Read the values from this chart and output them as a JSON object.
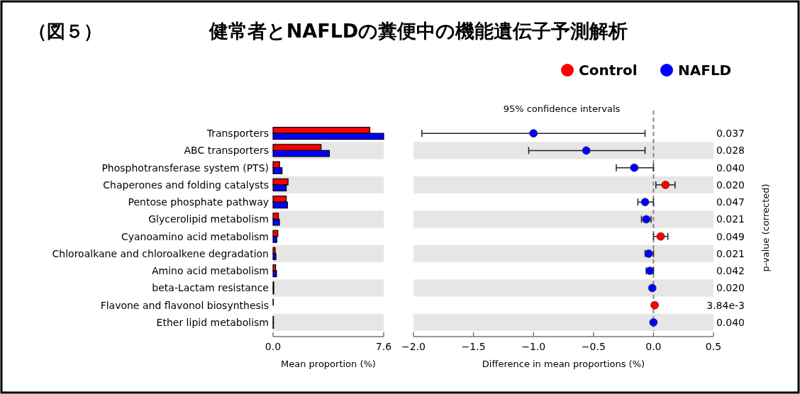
{
  "chart_data": [
    {
      "type": "bar",
      "orientation": "horizontal",
      "title": "健常者とNAFLDの糞便中の機能遺伝子予測解析",
      "annotations": [
        "（図５）"
      ],
      "xlabel": "Mean proportion (%)",
      "legend": "top right",
      "categories": [
        "Transporters",
        "ABC transporters",
        "Phosphotransferase system (PTS)",
        "Chaperones and folding catalysts",
        "Pentose phosphate pathway",
        "Glycerolipid metabolism",
        "Cyanoamino acid metabolism",
        "Chloroalkane and chloroalkene degradation",
        "Amino acid metabolism",
        "beta-Lactam resistance",
        "Flavone and flavonol biosynthesis",
        "Ether lipid metabolism"
      ],
      "series": [
        {
          "name": "Control",
          "color": "#ff0000",
          "values": [
            6.65,
            3.3,
            0.45,
            1.03,
            0.91,
            0.37,
            0.33,
            0.15,
            0.18,
            0.05,
            0.02,
            0.03
          ]
        },
        {
          "name": "NAFLD",
          "color": "#0000ff",
          "values": [
            7.6,
            3.87,
            0.62,
            0.91,
            0.99,
            0.44,
            0.26,
            0.2,
            0.24,
            0.05,
            null,
            0.03
          ]
        }
      ],
      "xlim": [
        0,
        7.6
      ],
      "xticks": [
        {
          "value": 0,
          "label": "0.0"
        },
        7.6
      ],
      "grid": false
    },
    {
      "type": "scatter",
      "orientation": "horizontal",
      "title": "95% confidence intervals",
      "xlabel": "Difference in mean proportions (%)",
      "y2label": "p-value (corrected)",
      "marker": "circle",
      "y2_categories": [
        "0.037",
        "0.028",
        "0.040",
        "0.020",
        "0.047",
        "0.021",
        "0.049",
        "0.021",
        "0.042",
        "0.020",
        "3.84e-3",
        "0.040"
      ],
      "series": [
        {
          "color": "#ff0000",
          "values": [
            null,
            null,
            null,
            0.1,
            null,
            null,
            0.06,
            null,
            null,
            null,
            0.01,
            null
          ],
          "errors": [
            null,
            null,
            null,
            [
              0.02,
              0.18
            ],
            null,
            null,
            [
              0.0,
              0.12
            ],
            null,
            null,
            null,
            null,
            null
          ]
        },
        {
          "color": "#0000ff",
          "values": [
            -1.0,
            -0.56,
            -0.16,
            null,
            -0.07,
            -0.06,
            null,
            -0.04,
            -0.03,
            -0.01,
            null,
            0.0
          ],
          "errors": [
            [
              -1.93,
              -0.07
            ],
            [
              -1.04,
              -0.07
            ],
            [
              -0.31,
              0.0
            ],
            null,
            [
              -0.13,
              0.0
            ],
            [
              -0.1,
              -0.02
            ],
            null,
            [
              -0.07,
              0.0
            ],
            [
              -0.06,
              0.0
            ],
            null,
            null,
            null
          ]
        }
      ],
      "ref_lines": [
        {
          "axis": "x",
          "value": 0,
          "line_style": "dashed",
          "color": "#888888"
        }
      ],
      "xlim": [
        -2,
        0.5
      ],
      "xticks": [
        {
          "value": -2,
          "label": "−2.0"
        },
        {
          "value": -1.5,
          "label": "−1.5"
        },
        {
          "value": -1,
          "label": "−1.0"
        },
        {
          "value": -0.5,
          "label": "−0.5"
        },
        {
          "value": 0,
          "label": "0.0"
        },
        0.5
      ],
      "grid": false
    }
  ]
}
